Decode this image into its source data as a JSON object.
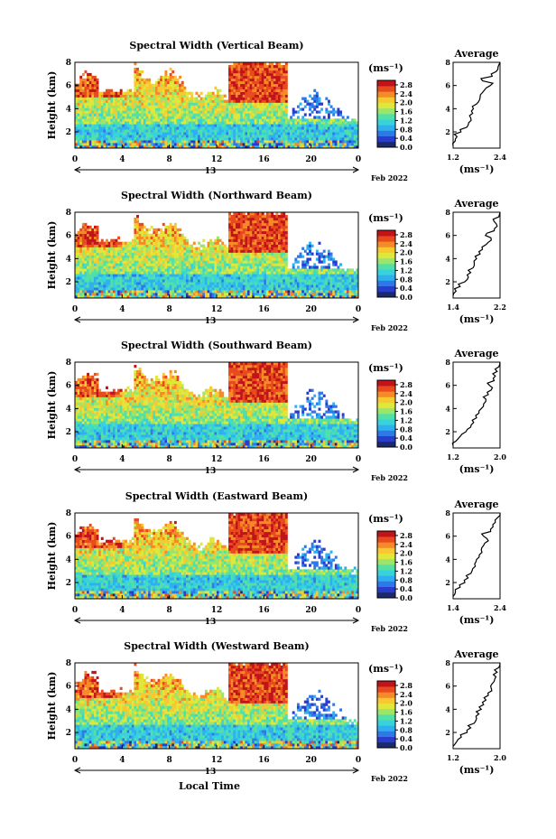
{
  "figure": {
    "x_axis_label": "Local Time",
    "date_label": "13",
    "month_label": "Feb 2022",
    "colorbar_unit": "(ms⁻¹)",
    "colorbar_ticks": [
      "0.0",
      "0.4",
      "0.8",
      "1.2",
      "1.6",
      "2.0",
      "2.4",
      "2.8"
    ],
    "colorbar_range": [
      0.0,
      3.0
    ],
    "colorbar_colors": [
      "#1b2a6b",
      "#2a3ccc",
      "#2f78e8",
      "#2fb0ee",
      "#38d2dc",
      "#52e0a6",
      "#9be56a",
      "#dfe83a",
      "#f8c830",
      "#f58a28",
      "#e84a1e",
      "#c0141a"
    ],
    "time_ticks": [
      "0",
      "4",
      "8",
      "12",
      "16",
      "20",
      "0"
    ],
    "time_range_hours": [
      0,
      24
    ],
    "height_label": "Height (km)",
    "height_ticks": [
      "2",
      "4",
      "6",
      "8"
    ],
    "height_range_km": [
      0.6,
      8.0
    ],
    "avg_title": "Average",
    "avg_unit": "(ms⁻¹)"
  },
  "chart_data": [
    {
      "type": "heatmap",
      "title": "Spectral Width (Vertical Beam)",
      "ylabel": "Height (km)",
      "xlabel": "",
      "avg_panel": {
        "title": "Average",
        "xlabel": "(ms⁻¹)",
        "xticks": [
          "1.2",
          "2.4"
        ],
        "xlim": [
          1.2,
          2.4
        ],
        "profile": [
          [
            0.8,
            1.2
          ],
          [
            1.2,
            1.25
          ],
          [
            1.6,
            1.3
          ],
          [
            2.0,
            1.4
          ],
          [
            2.4,
            1.55
          ],
          [
            2.8,
            1.6
          ],
          [
            3.2,
            1.65
          ],
          [
            3.6,
            1.7
          ],
          [
            4.0,
            1.72
          ],
          [
            4.4,
            1.8
          ],
          [
            4.8,
            1.88
          ],
          [
            5.2,
            1.9
          ],
          [
            5.6,
            2.0
          ],
          [
            6.0,
            2.15
          ],
          [
            6.4,
            1.95
          ],
          [
            6.8,
            2.2
          ],
          [
            7.2,
            2.3
          ],
          [
            7.6,
            2.35
          ],
          [
            8.0,
            2.4
          ]
        ]
      }
    },
    {
      "type": "heatmap",
      "title": "Spectral Width (Northward Beam)",
      "ylabel": "Height (km)",
      "xlabel": "",
      "avg_panel": {
        "title": "Average",
        "xlabel": "(ms⁻¹)",
        "xticks": [
          "1.4",
          "2.2"
        ],
        "xlim": [
          1.4,
          2.2
        ],
        "profile": [
          [
            0.8,
            1.4
          ],
          [
            1.2,
            1.45
          ],
          [
            1.6,
            1.52
          ],
          [
            2.0,
            1.6
          ],
          [
            2.4,
            1.66
          ],
          [
            2.8,
            1.7
          ],
          [
            3.2,
            1.74
          ],
          [
            3.6,
            1.76
          ],
          [
            4.0,
            1.8
          ],
          [
            4.4,
            1.86
          ],
          [
            4.8,
            1.9
          ],
          [
            5.2,
            1.96
          ],
          [
            5.6,
            2.05
          ],
          [
            6.0,
            1.95
          ],
          [
            6.4,
            2.1
          ],
          [
            6.8,
            2.15
          ],
          [
            7.2,
            2.1
          ],
          [
            7.6,
            2.18
          ],
          [
            8.0,
            2.2
          ]
        ]
      }
    },
    {
      "type": "heatmap",
      "title": "Spectral Width (Southward Beam)",
      "ylabel": "Height (km)",
      "xlabel": "",
      "avg_panel": {
        "title": "Average",
        "xlabel": "(ms⁻¹)",
        "xticks": [
          "1.2",
          "2.0"
        ],
        "xlim": [
          1.2,
          2.0
        ],
        "profile": [
          [
            0.8,
            1.2
          ],
          [
            1.2,
            1.25
          ],
          [
            1.6,
            1.32
          ],
          [
            2.0,
            1.42
          ],
          [
            2.4,
            1.5
          ],
          [
            2.8,
            1.55
          ],
          [
            3.2,
            1.6
          ],
          [
            3.6,
            1.64
          ],
          [
            4.0,
            1.68
          ],
          [
            4.4,
            1.72
          ],
          [
            4.8,
            1.76
          ],
          [
            5.2,
            1.8
          ],
          [
            5.6,
            1.85
          ],
          [
            6.0,
            1.82
          ],
          [
            6.4,
            1.9
          ],
          [
            6.8,
            1.92
          ],
          [
            7.2,
            1.95
          ],
          [
            7.6,
            1.98
          ],
          [
            8.0,
            2.0
          ]
        ]
      }
    },
    {
      "type": "heatmap",
      "title": "Spectral Width (Eastward Beam)",
      "ylabel": "Height (km)",
      "xlabel": "",
      "avg_panel": {
        "title": "Average",
        "xlabel": "(ms⁻¹)",
        "xticks": [
          "1.4",
          "2.4"
        ],
        "xlim": [
          1.4,
          2.4
        ],
        "profile": [
          [
            0.8,
            1.4
          ],
          [
            1.2,
            1.45
          ],
          [
            1.6,
            1.55
          ],
          [
            2.0,
            1.65
          ],
          [
            2.4,
            1.72
          ],
          [
            2.8,
            1.78
          ],
          [
            3.2,
            1.82
          ],
          [
            3.6,
            1.86
          ],
          [
            4.0,
            1.9
          ],
          [
            4.4,
            1.96
          ],
          [
            4.8,
            2.0
          ],
          [
            5.2,
            2.05
          ],
          [
            5.6,
            2.15
          ],
          [
            6.0,
            2.05
          ],
          [
            6.4,
            2.2
          ],
          [
            6.8,
            2.25
          ],
          [
            7.2,
            2.3
          ],
          [
            7.6,
            2.35
          ],
          [
            8.0,
            2.4
          ]
        ]
      }
    },
    {
      "type": "heatmap",
      "title": "Spectral Width (Westward Beam)",
      "ylabel": "Height (km)",
      "xlabel": "Local Time",
      "avg_panel": {
        "title": "Average",
        "xlabel": "(ms⁻¹)",
        "xticks": [
          "1.2",
          "2.0"
        ],
        "xlim": [
          1.2,
          2.0
        ],
        "profile": [
          [
            0.8,
            1.2
          ],
          [
            1.2,
            1.26
          ],
          [
            1.6,
            1.34
          ],
          [
            2.0,
            1.44
          ],
          [
            2.4,
            1.5
          ],
          [
            2.8,
            1.56
          ],
          [
            3.2,
            1.6
          ],
          [
            3.6,
            1.64
          ],
          [
            4.0,
            1.68
          ],
          [
            4.4,
            1.72
          ],
          [
            4.8,
            1.76
          ],
          [
            5.2,
            1.8
          ],
          [
            5.6,
            1.86
          ],
          [
            6.0,
            1.84
          ],
          [
            6.4,
            1.9
          ],
          [
            6.8,
            1.93
          ],
          [
            7.2,
            1.95
          ],
          [
            7.6,
            1.98
          ],
          [
            8.0,
            2.0
          ]
        ]
      }
    }
  ]
}
